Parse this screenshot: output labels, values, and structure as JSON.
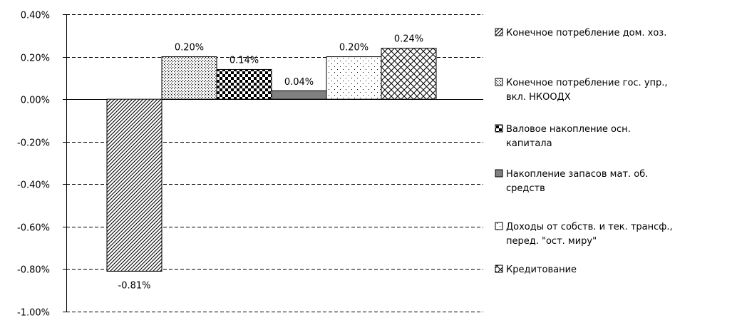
{
  "chart_data": {
    "type": "bar",
    "ylim": [
      -1.0,
      0.4
    ],
    "y_ticks": [
      0.4,
      0.2,
      0.0,
      -0.2,
      -0.4,
      -0.6,
      -0.8,
      -1.0
    ],
    "y_tick_labels": [
      "0.40%",
      "0.20%",
      "0.00%",
      "-0.20%",
      "-0.40%",
      "-0.60%",
      "-0.80%",
      "-1.00%"
    ],
    "gridlines": "dashed",
    "legend_position": "right",
    "series": [
      {
        "name": "Конечное потребление дом. хоз.",
        "value": -0.81,
        "label": "-0.81%",
        "pattern": "diag-hatch"
      },
      {
        "name": "Конечное потребление гос. упр., вкл. НКООДХ",
        "value": 0.2,
        "label": "0.20%",
        "pattern": "dots"
      },
      {
        "name": "Валовое накопление осн. капитала",
        "value": 0.14,
        "label": "0.14%",
        "pattern": "checker"
      },
      {
        "name": "Накопление запасов мат. об. средств",
        "value": 0.04,
        "label": "0.04%",
        "pattern": "solid-gray"
      },
      {
        "name": "Доходы от собств. и тек. трансф., перед. \"ост. миру\"",
        "value": 0.2,
        "label": "0.20%",
        "pattern": "sparse-dots"
      },
      {
        "name": "Кредитование",
        "value": 0.24,
        "label": "0.24%",
        "pattern": "crosshatch"
      }
    ],
    "legend_lines": [
      [
        "Конечное потребление дом. хоз."
      ],
      [
        "Конечное потребление гос. упр.,",
        "вкл. НКООДХ"
      ],
      [
        "Валовое накопление осн.",
        "капитала"
      ],
      [
        "Накопление запасов мат. об.",
        "средств"
      ],
      [
        "Доходы от собств. и тек. трансф.,",
        "перед. \"ост. миру\""
      ],
      [
        "Кредитование"
      ]
    ]
  }
}
